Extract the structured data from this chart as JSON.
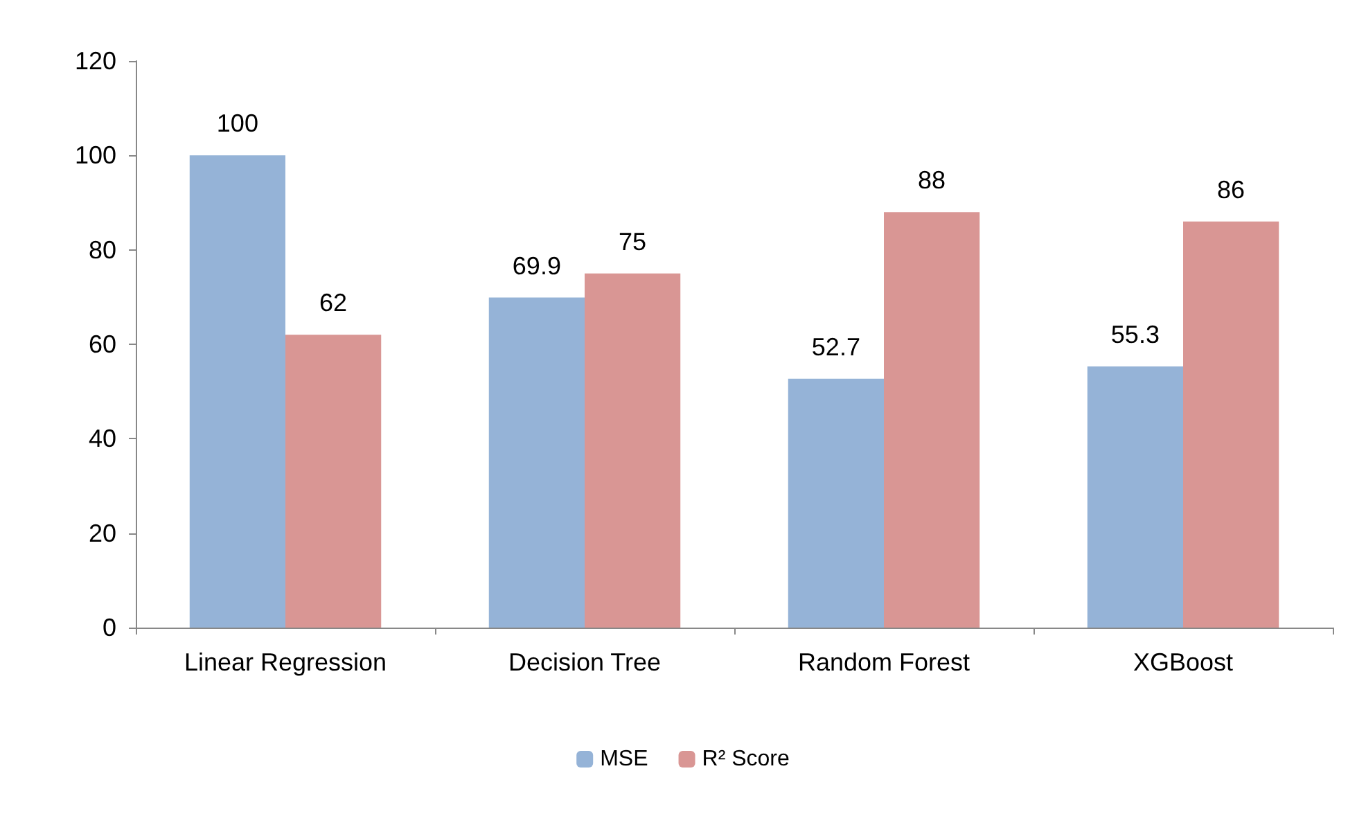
{
  "chart_data": {
    "type": "bar",
    "categories": [
      "Linear Regression",
      "Decision Tree",
      "Random Forest",
      "XGBoost"
    ],
    "series": [
      {
        "name": "MSE",
        "color": "#95b3d7",
        "values": [
          100,
          69.9,
          52.7,
          55.3
        ]
      },
      {
        "name": "R² Score",
        "color": "#d99694",
        "values": [
          62,
          75,
          88,
          86
        ]
      }
    ],
    "ylim": [
      0,
      120
    ],
    "yticks": [
      0,
      20,
      40,
      60,
      80,
      100,
      120
    ],
    "grid": false,
    "legend": "bottom",
    "data_labels": true
  }
}
